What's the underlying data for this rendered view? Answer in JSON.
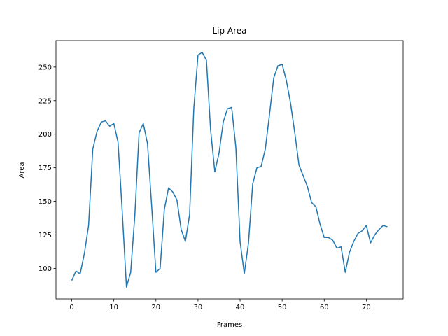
{
  "chart_data": {
    "type": "line",
    "title": "Lip Area",
    "x_label": "Frames",
    "y_label": "Area",
    "x": [
      0,
      1,
      2,
      3,
      4,
      5,
      6,
      7,
      8,
      9,
      10,
      11,
      12,
      13,
      14,
      15,
      16,
      17,
      18,
      19,
      20,
      21,
      22,
      23,
      24,
      25,
      26,
      27,
      28,
      29,
      30,
      31,
      32,
      33,
      34,
      35,
      36,
      37,
      38,
      39,
      40,
      41,
      42,
      43,
      44,
      45,
      46,
      47,
      48,
      49,
      50,
      51,
      52,
      53,
      54,
      55,
      56,
      57,
      58,
      59,
      60,
      61,
      62,
      63,
      64,
      65,
      66,
      67,
      68,
      69,
      70,
      71,
      72,
      73,
      74,
      75
    ],
    "series": [
      {
        "color": "#1f77b4",
        "values": [
          91,
          98,
          96,
          111,
          132,
          189,
          202,
          209,
          210,
          206,
          208,
          194,
          142,
          86,
          97,
          140,
          201,
          208,
          193,
          146,
          97,
          100,
          144,
          160,
          157,
          151,
          129,
          120,
          140,
          219,
          259,
          261,
          255,
          203,
          172,
          186,
          209,
          219,
          220,
          190,
          120,
          96,
          119,
          163,
          175,
          176,
          189,
          215,
          242,
          251,
          252,
          240,
          223,
          201,
          177,
          169,
          161,
          149,
          146,
          133,
          123,
          123,
          121,
          115,
          116,
          97,
          112,
          120,
          126,
          128,
          132,
          119,
          125,
          129,
          132,
          131
        ]
      }
    ],
    "xlim": [
      -3.75,
      78.75
    ],
    "ylim": [
      77.25,
      269.75
    ],
    "xticks": [
      0,
      10,
      20,
      30,
      40,
      50,
      60,
      70
    ],
    "yticks": [
      100,
      125,
      150,
      175,
      200,
      225,
      250
    ]
  }
}
